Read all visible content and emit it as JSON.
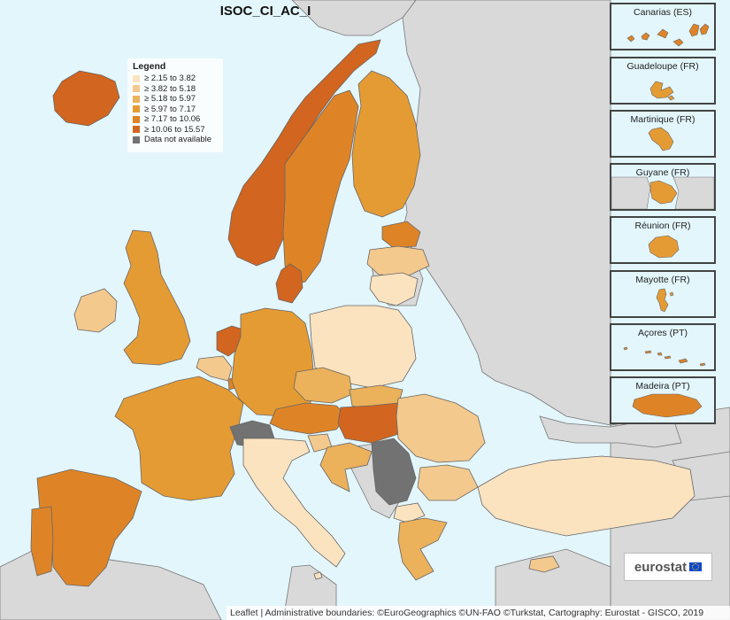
{
  "title": "ISOC_CI_AC_I",
  "legend": {
    "title": "Legend",
    "items": [
      {
        "label": "≥ 2.15 to 3.82",
        "color": "#fbe3c0"
      },
      {
        "label": "≥ 3.82 to 5.18",
        "color": "#f4c98e"
      },
      {
        "label": "≥ 5.18 to 5.97",
        "color": "#ebb15b"
      },
      {
        "label": "≥ 5.97 to 7.17",
        "color": "#e59b33"
      },
      {
        "label": "≥ 7.17 to 10.06",
        "color": "#de8427"
      },
      {
        "label": "≥ 10.06 to 15.57",
        "color": "#d2651f"
      },
      {
        "label": "Data not available",
        "color": "#727272"
      }
    ]
  },
  "colors": {
    "sea": "#e3f6fb",
    "non_eu": "#d9d9d9",
    "border": "#666666"
  },
  "regions": [
    {
      "name": "Iceland",
      "class": "≥ 10.06 to 15.57"
    },
    {
      "name": "Norway",
      "class": "≥ 10.06 to 15.57"
    },
    {
      "name": "Sweden",
      "class": "≥ 7.17 to 10.06"
    },
    {
      "name": "Finland",
      "class": "≥ 5.97 to 7.17"
    },
    {
      "name": "Estonia",
      "class": "≥ 7.17 to 10.06"
    },
    {
      "name": "Latvia",
      "class": "≥ 3.82 to 5.18"
    },
    {
      "name": "Lithuania",
      "class": "≥ 2.15 to 3.82"
    },
    {
      "name": "Ireland",
      "class": "≥ 3.82 to 5.18"
    },
    {
      "name": "United Kingdom",
      "class": "≥ 5.97 to 7.17"
    },
    {
      "name": "Denmark",
      "class": "≥ 10.06 to 15.57"
    },
    {
      "name": "Netherlands",
      "class": "≥ 10.06 to 15.57"
    },
    {
      "name": "Belgium",
      "class": "≥ 3.82 to 5.18"
    },
    {
      "name": "Luxembourg",
      "class": "≥ 7.17 to 10.06"
    },
    {
      "name": "Germany",
      "class": "≥ 5.97 to 7.17"
    },
    {
      "name": "Poland",
      "class": "≥ 2.15 to 3.82"
    },
    {
      "name": "Czechia",
      "class": "≥ 5.18 to 5.97"
    },
    {
      "name": "Slovakia",
      "class": "≥ 5.18 to 5.97"
    },
    {
      "name": "Austria",
      "class": "≥ 7.17 to 10.06"
    },
    {
      "name": "Hungary",
      "class": "≥ 10.06 to 15.57"
    },
    {
      "name": "Romania",
      "class": "≥ 3.82 to 5.18"
    },
    {
      "name": "Bulgaria",
      "class": "≥ 3.82 to 5.18"
    },
    {
      "name": "France",
      "class": "≥ 5.97 to 7.17"
    },
    {
      "name": "Switzerland",
      "class": "Data not available"
    },
    {
      "name": "Italy",
      "class": "≥ 2.15 to 3.82"
    },
    {
      "name": "Slovenia",
      "class": "≥ 3.82 to 5.18"
    },
    {
      "name": "Croatia",
      "class": "≥ 5.18 to 5.97"
    },
    {
      "name": "Serbia",
      "class": "Data not available"
    },
    {
      "name": "North Macedonia",
      "class": "≥ 2.15 to 3.82"
    },
    {
      "name": "Greece",
      "class": "≥ 5.18 to 5.97"
    },
    {
      "name": "Turkey",
      "class": "≥ 2.15 to 3.82"
    },
    {
      "name": "Spain",
      "class": "≥ 7.17 to 10.06"
    },
    {
      "name": "Portugal",
      "class": "≥ 7.17 to 10.06"
    },
    {
      "name": "Malta",
      "class": "≥ 2.15 to 3.82"
    },
    {
      "name": "Cyprus",
      "class": "≥ 3.82 to 5.18"
    }
  ],
  "insets": [
    {
      "label": "Canarias (ES)",
      "class": "≥ 7.17 to 10.06"
    },
    {
      "label": "Guadeloupe (FR)",
      "class": "≥ 5.97 to 7.17"
    },
    {
      "label": "Martinique (FR)",
      "class": "≥ 5.97 to 7.17"
    },
    {
      "label": "Guyane (FR)",
      "class": "≥ 5.97 to 7.17"
    },
    {
      "label": "Réunion (FR)",
      "class": "≥ 5.97 to 7.17"
    },
    {
      "label": "Mayotte (FR)",
      "class": "≥ 5.97 to 7.17"
    },
    {
      "label": "Açores (PT)",
      "class": "≥ 7.17 to 10.06"
    },
    {
      "label": "Madeira (PT)",
      "class": "≥ 7.17 to 10.06"
    }
  ],
  "logo": {
    "text": "eurostat"
  },
  "attribution": "Leaflet | Administrative boundaries: ©EuroGeographics ©UN-FAO ©Turkstat, Cartography: Eurostat - GISCO, 2019"
}
